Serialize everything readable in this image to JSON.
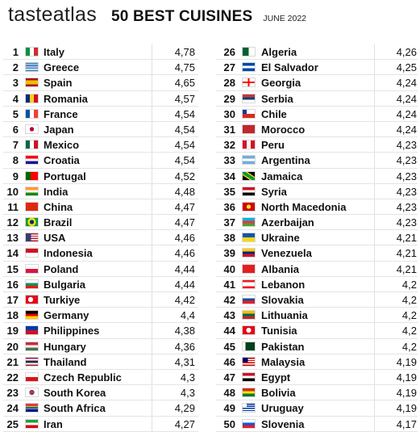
{
  "header": {
    "brand_taste": "taste",
    "brand_atlas": "atlas",
    "title": "50 BEST CUISINES",
    "date": "JUNE 2022"
  },
  "left": [
    {
      "rank": "1",
      "name": "Italy",
      "score": "4,78",
      "flag": "italy"
    },
    {
      "rank": "2",
      "name": "Greece",
      "score": "4,75",
      "flag": "greece"
    },
    {
      "rank": "3",
      "name": "Spain",
      "score": "4,65",
      "flag": "spain"
    },
    {
      "rank": "4",
      "name": "Romania",
      "score": "4,57",
      "flag": "romania"
    },
    {
      "rank": "5",
      "name": "France",
      "score": "4,54",
      "flag": "france"
    },
    {
      "rank": "6",
      "name": "Japan",
      "score": "4,54",
      "flag": "japan"
    },
    {
      "rank": "7",
      "name": "Mexico",
      "score": "4,54",
      "flag": "mexico"
    },
    {
      "rank": "8",
      "name": "Croatia",
      "score": "4,54",
      "flag": "croatia"
    },
    {
      "rank": "9",
      "name": "Portugal",
      "score": "4,52",
      "flag": "portugal"
    },
    {
      "rank": "10",
      "name": "India",
      "score": "4,48",
      "flag": "india"
    },
    {
      "rank": "11",
      "name": "China",
      "score": "4,47",
      "flag": "china"
    },
    {
      "rank": "12",
      "name": "Brazil",
      "score": "4,47",
      "flag": "brazil"
    },
    {
      "rank": "13",
      "name": "USA",
      "score": "4,46",
      "flag": "usa"
    },
    {
      "rank": "14",
      "name": "Indonesia",
      "score": "4,46",
      "flag": "indonesia"
    },
    {
      "rank": "15",
      "name": "Poland",
      "score": "4,44",
      "flag": "poland"
    },
    {
      "rank": "16",
      "name": "Bulgaria",
      "score": "4,44",
      "flag": "bulgaria"
    },
    {
      "rank": "17",
      "name": "Turkiye",
      "score": "4,42",
      "flag": "turkiye"
    },
    {
      "rank": "18",
      "name": "Germany",
      "score": "4,4",
      "flag": "germany"
    },
    {
      "rank": "19",
      "name": "Philippines",
      "score": "4,38",
      "flag": "philippines"
    },
    {
      "rank": "20",
      "name": "Hungary",
      "score": "4,36",
      "flag": "hungary"
    },
    {
      "rank": "21",
      "name": "Thailand",
      "score": "4,31",
      "flag": "thailand"
    },
    {
      "rank": "22",
      "name": "Czech Republic",
      "score": "4,3",
      "flag": "czech"
    },
    {
      "rank": "23",
      "name": "South Korea",
      "score": "4,3",
      "flag": "southkorea"
    },
    {
      "rank": "24",
      "name": "South Africa",
      "score": "4,29",
      "flag": "southafrica"
    },
    {
      "rank": "25",
      "name": "Iran",
      "score": "4,27",
      "flag": "iran"
    }
  ],
  "right": [
    {
      "rank": "26",
      "name": "Algeria",
      "score": "4,26",
      "flag": "algeria"
    },
    {
      "rank": "27",
      "name": "El Salvador",
      "score": "4,25",
      "flag": "elsalvador"
    },
    {
      "rank": "28",
      "name": "Georgia",
      "score": "4,24",
      "flag": "georgia"
    },
    {
      "rank": "29",
      "name": "Serbia",
      "score": "4,24",
      "flag": "serbia"
    },
    {
      "rank": "30",
      "name": "Chile",
      "score": "4,24",
      "flag": "chile"
    },
    {
      "rank": "31",
      "name": "Morocco",
      "score": "4,24",
      "flag": "morocco"
    },
    {
      "rank": "32",
      "name": "Peru",
      "score": "4,23",
      "flag": "peru"
    },
    {
      "rank": "33",
      "name": "Argentina",
      "score": "4,23",
      "flag": "argentina"
    },
    {
      "rank": "34",
      "name": "Jamaica",
      "score": "4,23",
      "flag": "jamaica"
    },
    {
      "rank": "35",
      "name": "Syria",
      "score": "4,23",
      "flag": "syria"
    },
    {
      "rank": "36",
      "name": "North Macedonia",
      "score": "4,23",
      "flag": "northmacedonia"
    },
    {
      "rank": "37",
      "name": "Azerbaijan",
      "score": "4,23",
      "flag": "azerbaijan"
    },
    {
      "rank": "38",
      "name": "Ukraine",
      "score": "4,21",
      "flag": "ukraine"
    },
    {
      "rank": "39",
      "name": "Venezuela",
      "score": "4,21",
      "flag": "venezuela"
    },
    {
      "rank": "40",
      "name": "Albania",
      "score": "4,21",
      "flag": "albania"
    },
    {
      "rank": "41",
      "name": "Lebanon",
      "score": "4,2",
      "flag": "lebanon"
    },
    {
      "rank": "42",
      "name": "Slovakia",
      "score": "4,2",
      "flag": "slovakia"
    },
    {
      "rank": "43",
      "name": "Lithuania",
      "score": "4,2",
      "flag": "lithuania"
    },
    {
      "rank": "44",
      "name": "Tunisia",
      "score": "4,2",
      "flag": "tunisia"
    },
    {
      "rank": "45",
      "name": "Pakistan",
      "score": "4,2",
      "flag": "pakistan"
    },
    {
      "rank": "46",
      "name": "Malaysia",
      "score": "4,19",
      "flag": "malaysia"
    },
    {
      "rank": "47",
      "name": "Egypt",
      "score": "4,19",
      "flag": "egypt"
    },
    {
      "rank": "48",
      "name": "Bolivia",
      "score": "4,19",
      "flag": "bolivia"
    },
    {
      "rank": "49",
      "name": "Uruguay",
      "score": "4,19",
      "flag": "uruguay"
    },
    {
      "rank": "50",
      "name": "Slovenia",
      "score": "4,17",
      "flag": "slovenia"
    }
  ]
}
